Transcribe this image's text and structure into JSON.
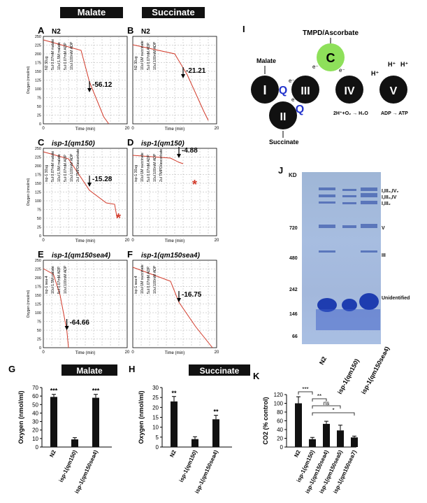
{
  "headers": {
    "malate": "Malate",
    "succinate": "Succinate"
  },
  "panels": [
    {
      "letter": "A",
      "title": "N2",
      "value": "-56.12",
      "xlab": "Time (min)",
      "x_max": "20",
      "annos": [
        "N2 30ug",
        "5ul 0.07mM malate",
        "10ul 1.5M malate",
        "5ul 0.07mM ADP",
        "10ul 100mM ADP"
      ]
    },
    {
      "letter": "B",
      "title": "N2",
      "value": "-21.21",
      "xlab": "Time (min)",
      "x_max": "20",
      "annos": [
        "N2 30ug",
        "10ul 1M succinate",
        "5ul 0.07mM ADP",
        "10ul 100mM ADP"
      ]
    },
    {
      "letter": "C",
      "title": "isp-1(qm150)",
      "value": "-15.28",
      "xlab": "Time (min)",
      "x_max": "20",
      "annos": [
        "isp-1 30ug",
        "5ul 0.07mM malate",
        "10ul 1.5M malate",
        "5ul 0.07mM ADP",
        "10ul 100mM ADP",
        "2ul TMPD/ascorbate"
      ]
    },
    {
      "letter": "D",
      "title": "isp-1(qm150)",
      "value": "-4.88",
      "xlab": "Time (min)",
      "x_max": "20",
      "annos": [
        "isp-1 30ug",
        "10ul 1M succinate",
        "5ul 0.07mM ADP",
        "10ul 100mM ADP",
        "2ul TMPD/ascorbate"
      ]
    },
    {
      "letter": "E",
      "title": "isp-1(qm150sea4)",
      "value": "-64.66",
      "xlab": "Time (min)",
      "x_max": "20",
      "annos": [
        "isp-1 sea-4",
        "10ul 1.5M malate",
        "5ul 0.07mM ADP",
        "10ul 100mM ADP"
      ]
    },
    {
      "letter": "F",
      "title": "isp-1(qm150sea4)",
      "value": "-16.75",
      "xlab": "Time (min)",
      "x_max": "20",
      "annos": [
        "isp-1 sea-4",
        "10ul 1M succinate",
        "5ul 0.07mM ADP",
        "10ul 100mM ADP"
      ]
    }
  ],
  "trace_axis": {
    "ylabel": "Oxygen (nmol/ml)",
    "yticks": [
      "250",
      "225",
      "200",
      "175",
      "150",
      "125",
      "100",
      "75",
      "50",
      "25",
      "0"
    ],
    "x0": "0"
  },
  "diagram": {
    "letter": "I",
    "tmpd": "TMPD/Ascorbate",
    "malate": "Malate",
    "succinate": "Succinate",
    "complexes": [
      "I",
      "II",
      "III",
      "IV",
      "V",
      "C"
    ],
    "q": "Q",
    "e": "e⁻",
    "eq1": "2H⁺+O₂ → H₂O",
    "eq2": "ADP → ATP",
    "h": "H⁺"
  },
  "gel": {
    "letter": "J",
    "kd": "KD",
    "markers": [
      "720",
      "480",
      "242",
      "146",
      "66"
    ],
    "bands": [
      "I,III₂,IV₂",
      "I,III₂,IV",
      "I,III₂",
      "V",
      "III",
      "Unidentified"
    ],
    "lanes": [
      "N2",
      "isp-1(qm150)",
      "isp-1(qm150sea4)"
    ]
  },
  "chart_data": [
    {
      "type": "bar",
      "letter": "G",
      "title": "Malate",
      "ylabel": "Oxygen (nmol/ml)",
      "ylim": [
        0,
        70
      ],
      "yticks": [
        "0",
        "10",
        "20",
        "30",
        "40",
        "50",
        "60",
        "70"
      ],
      "categories": [
        "N2",
        "isp-1(qm150)",
        "isp-1(qm150sea4)"
      ],
      "values": [
        59,
        9,
        58
      ],
      "errors": [
        3,
        2,
        4
      ],
      "sig": [
        "***",
        "",
        "***"
      ]
    },
    {
      "type": "bar",
      "letter": "H",
      "title": "Succinate",
      "ylabel": "Oxygen (nmol/ml)",
      "ylim": [
        0,
        30
      ],
      "yticks": [
        "0",
        "5",
        "10",
        "15",
        "20",
        "25",
        "30"
      ],
      "categories": [
        "N2",
        "isp-1(qm150)",
        "isp-1(qm150sea4)"
      ],
      "values": [
        23,
        4,
        14
      ],
      "errors": [
        2.5,
        1.2,
        2
      ],
      "sig": [
        "**",
        "",
        "**"
      ]
    },
    {
      "type": "bar",
      "letter": "K",
      "title": "",
      "ylabel": "CO2 (% control)",
      "ylim": [
        0,
        120
      ],
      "yticks": [
        "0",
        "20",
        "40",
        "60",
        "80",
        "100",
        "120"
      ],
      "categories": [
        "N2",
        "isp-1(qm150)",
        "isp-1(qm150sea4)",
        "isp-1(qm150sea5)",
        "isp-1(qm150sea7)"
      ],
      "values": [
        100,
        18,
        53,
        38,
        22
      ],
      "errors": [
        15,
        4,
        6,
        12,
        3
      ],
      "brackets": [
        {
          "from": 0,
          "to": 1,
          "label": "***"
        },
        {
          "from": 1,
          "to": 2,
          "label": "**"
        },
        {
          "from": 1,
          "to": 3,
          "label": "ns"
        },
        {
          "from": 1,
          "to": 4,
          "label": "*"
        }
      ]
    }
  ]
}
